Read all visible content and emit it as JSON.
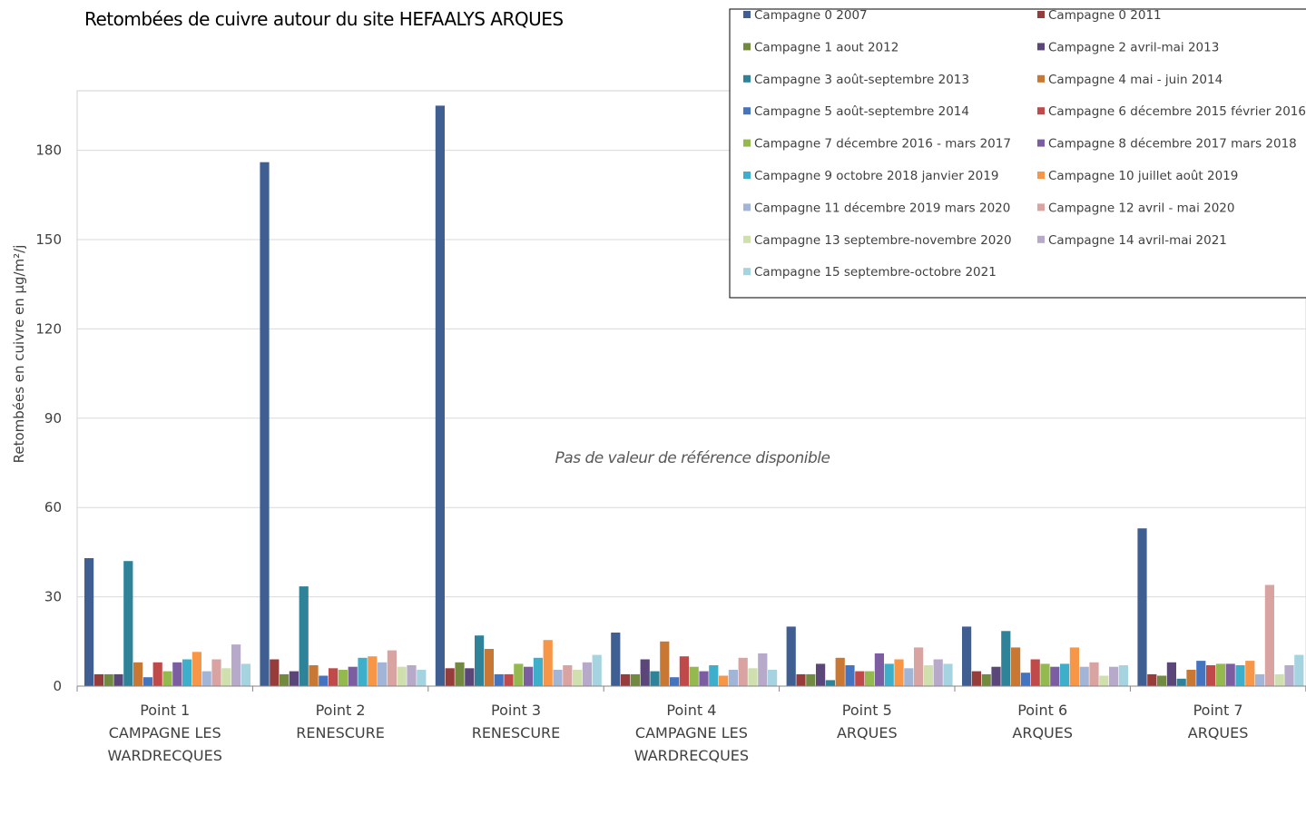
{
  "chart_data": {
    "type": "bar",
    "title": "Retombées de cuivre autour du site HEFAALYS ARQUES",
    "ylabel": "Retombées en cuivre en  µg/m²/j",
    "xlabel": "",
    "ylim": [
      0,
      200
    ],
    "yticks": [
      0,
      30,
      60,
      90,
      120,
      150,
      180
    ],
    "grid": true,
    "legend_position": "top-right",
    "annotation": "Pas de valeur de référence disponible",
    "categories": [
      [
        "Point 1",
        "CAMPAGNE LES",
        "WARDRECQUES"
      ],
      [
        "Point 2",
        "RENESCURE"
      ],
      [
        "Point 3",
        "RENESCURE"
      ],
      [
        "Point 4",
        "CAMPAGNE LES",
        "WARDRECQUES"
      ],
      [
        "Point 5",
        "ARQUES"
      ],
      [
        "Point 6",
        "ARQUES"
      ],
      [
        "Point 7",
        "ARQUES"
      ]
    ],
    "series": [
      {
        "name": "Campagne 0 2007",
        "color": "#3F5F92",
        "values": [
          43,
          176,
          195,
          18,
          20,
          20,
          53
        ]
      },
      {
        "name": "Campagne 0 2011",
        "color": "#963C3A",
        "values": [
          4,
          9,
          6,
          4,
          4,
          5,
          4
        ]
      },
      {
        "name": "Campagne 1 aout 2012",
        "color": "#728A3F",
        "values": [
          4,
          4,
          8,
          4,
          4,
          4,
          3.5
        ]
      },
      {
        "name": "Campagne 2 avril-mai 2013",
        "color": "#5A4678",
        "values": [
          4,
          5,
          6,
          9,
          7.5,
          6.5,
          8
        ]
      },
      {
        "name": "Campagne 3  août-septembre 2013",
        "color": "#2E8399",
        "values": [
          42,
          33.5,
          17,
          5,
          2,
          18.5,
          2.5
        ]
      },
      {
        "name": "Campagne 4 mai - juin 2014",
        "color": "#C97833",
        "values": [
          8,
          7,
          12.5,
          15,
          9.5,
          13,
          5.5
        ]
      },
      {
        "name": "Campagne 5 août-septembre 2014",
        "color": "#4474C0",
        "values": [
          3,
          3.5,
          4,
          3,
          7,
          4.5,
          8.5
        ]
      },
      {
        "name": "Campagne 6 décembre 2015 février 2016",
        "color": "#C0494A",
        "values": [
          8,
          6,
          4,
          10,
          5,
          9,
          7
        ]
      },
      {
        "name": "Campagne 7 décembre 2016 - mars 2017",
        "color": "#94B94F",
        "values": [
          5,
          5.5,
          7.5,
          6.5,
          5,
          7.5,
          7.5
        ]
      },
      {
        "name": "Campagne 8 décembre 2017 mars 2018",
        "color": "#7C5DA1",
        "values": [
          8,
          6.5,
          6.5,
          5,
          11,
          6.5,
          7.5
        ]
      },
      {
        "name": "Campagne 9 octobre 2018 janvier 2019",
        "color": "#3DAFCA",
        "values": [
          9,
          9.5,
          9.5,
          7,
          7.5,
          7.5,
          7
        ]
      },
      {
        "name": "Campagne 10 juillet août 2019",
        "color": "#F79646",
        "values": [
          11.5,
          10,
          15.5,
          3.5,
          9,
          13,
          8.5
        ]
      },
      {
        "name": "Campagne 11 décembre 2019 mars 2020",
        "color": "#A2B5D6",
        "values": [
          5,
          8,
          5.5,
          5.5,
          6,
          6.5,
          4
        ]
      },
      {
        "name": "Campagne 12 avril - mai 2020",
        "color": "#D8A3A1",
        "values": [
          9,
          12,
          7,
          9.5,
          13,
          8,
          34
        ]
      },
      {
        "name": "Campagne 13 septembre-novembre 2020",
        "color": "#CFDFAE",
        "values": [
          6,
          6.5,
          5.5,
          6,
          7,
          3.5,
          4
        ]
      },
      {
        "name": "Campagne 14 avril-mai 2021",
        "color": "#B6A9C9",
        "values": [
          14,
          7,
          8,
          11,
          9,
          6.5,
          7
        ]
      },
      {
        "name": "Campagne 15 septembre-octobre 2021",
        "color": "#A5D4E0",
        "values": [
          7.5,
          5.5,
          10.5,
          5.5,
          7.5,
          7,
          10.5
        ]
      }
    ]
  }
}
